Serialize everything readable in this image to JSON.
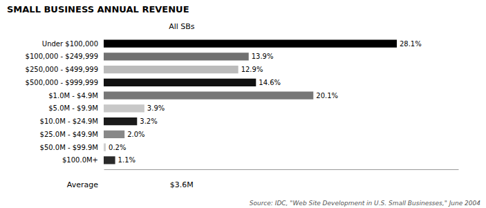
{
  "chart_data": {
    "type": "bar",
    "orientation": "horizontal",
    "title": "SMALL BUSINESS ANNUAL REVENUE",
    "categories": [
      "Under $100,000",
      "$100,000 - $249,999",
      "$250,000 - $499,999",
      "$500,000 - $999,999",
      "$1.0M - $4.9M",
      "$5.0M - $9.9M",
      "$10.0M - $24.9M",
      "$25.0M - $49.9M",
      "$50.0M - $99.9M",
      "$100.0M+"
    ],
    "values": [
      28.1,
      13.9,
      12.9,
      14.6,
      20.1,
      3.9,
      3.2,
      2.0,
      0.2,
      1.1
    ],
    "value_labels": [
      "28.1%",
      "13.9%",
      "12.9%",
      "14.6%",
      "20.1%",
      "3.9%",
      "3.2%",
      "2.0%",
      "0.2%",
      "1.1%"
    ],
    "data_labels": true,
    "colors": [
      "#000000",
      "#717171",
      "#bbbbbb",
      "#111111",
      "#777777",
      "#c8c8c8",
      "#1a1a1a",
      "#888888",
      "#d0d0d0",
      "#2a2a2a"
    ],
    "xlim": [
      0,
      34
    ],
    "tick_labels": false,
    "grid": false,
    "annotations": [
      "All SBs",
      "Average",
      "$3.6M",
      "Source: IDC, \"Web Site Development in U.S. Small Businesses,\" June 2004"
    ]
  }
}
